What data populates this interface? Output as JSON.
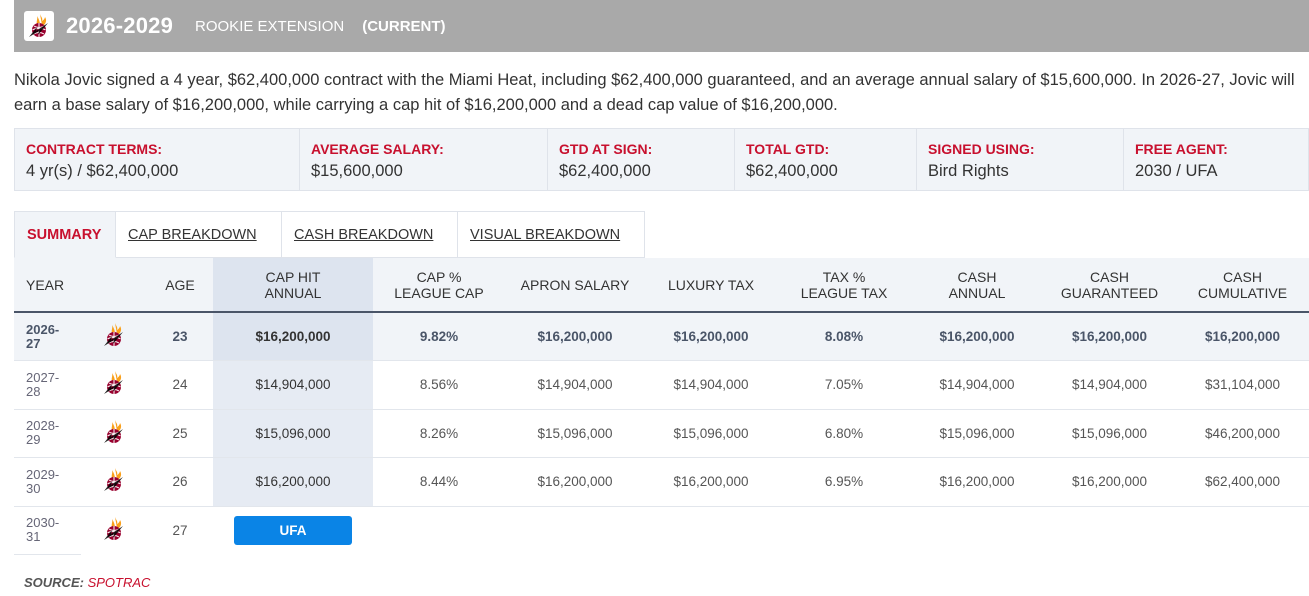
{
  "header": {
    "years": "2026-2029",
    "type": "ROOKIE EXTENSION",
    "status": "(CURRENT)",
    "logo_icon": "miami-heat-logo"
  },
  "summary": "Nikola Jovic signed a 4 year, $62,400,000 contract with the Miami Heat, including $62,400,000 guaranteed, and an average annual salary of $15,600,000. In 2026-27, Jovic will earn a base salary of $16,200,000, while carrying a cap hit of $16,200,000 and a dead cap value of $16,200,000.",
  "terms": [
    {
      "label": "CONTRACT TERMS:",
      "value": "4 yr(s) / $62,400,000"
    },
    {
      "label": "AVERAGE SALARY:",
      "value": "$15,600,000"
    },
    {
      "label": "GTD AT SIGN:",
      "value": "$62,400,000"
    },
    {
      "label": "TOTAL GTD:",
      "value": "$62,400,000"
    },
    {
      "label": "SIGNED USING:",
      "value": "Bird Rights"
    },
    {
      "label": "FREE AGENT:",
      "value": "2030 / UFA"
    }
  ],
  "tabs": [
    {
      "label": "SUMMARY",
      "active": true
    },
    {
      "label": "CAP BREAKDOWN",
      "active": false
    },
    {
      "label": "CASH BREAKDOWN",
      "active": false
    },
    {
      "label": "VISUAL BREAKDOWN",
      "active": false
    }
  ],
  "table": {
    "headers": {
      "year": "YEAR",
      "age": "AGE",
      "cap_hit_1": "CAP HIT",
      "cap_hit_2": "ANNUAL",
      "cap_pct_1": "CAP %",
      "cap_pct_2": "LEAGUE CAP",
      "apron": "APRON SALARY",
      "luxury": "LUXURY TAX",
      "tax_pct_1": "TAX %",
      "tax_pct_2": "LEAGUE TAX",
      "cash_annual_1": "CASH",
      "cash_annual_2": "ANNUAL",
      "cash_gtd_1": "CASH",
      "cash_gtd_2": "GUARANTEED",
      "cash_cum_1": "CASH",
      "cash_cum_2": "CUMULATIVE"
    },
    "rows": [
      {
        "year_1": "2026-",
        "year_2": "27",
        "age": "23",
        "cap_hit": "$16,200,000",
        "cap_pct": "9.82%",
        "apron": "$16,200,000",
        "luxury": "$16,200,000",
        "tax_pct": "8.08%",
        "cash_annual": "$16,200,000",
        "cash_gtd": "$16,200,000",
        "cash_cum": "$16,200,000"
      },
      {
        "year_1": "2027-",
        "year_2": "28",
        "age": "24",
        "cap_hit": "$14,904,000",
        "cap_pct": "8.56%",
        "apron": "$14,904,000",
        "luxury": "$14,904,000",
        "tax_pct": "7.05%",
        "cash_annual": "$14,904,000",
        "cash_gtd": "$14,904,000",
        "cash_cum": "$31,104,000"
      },
      {
        "year_1": "2028-",
        "year_2": "29",
        "age": "25",
        "cap_hit": "$15,096,000",
        "cap_pct": "8.26%",
        "apron": "$15,096,000",
        "luxury": "$15,096,000",
        "tax_pct": "6.80%",
        "cash_annual": "$15,096,000",
        "cash_gtd": "$15,096,000",
        "cash_cum": "$46,200,000"
      },
      {
        "year_1": "2029-",
        "year_2": "30",
        "age": "26",
        "cap_hit": "$16,200,000",
        "cap_pct": "8.44%",
        "apron": "$16,200,000",
        "luxury": "$16,200,000",
        "tax_pct": "6.95%",
        "cash_annual": "$16,200,000",
        "cash_gtd": "$16,200,000",
        "cash_cum": "$62,400,000"
      },
      {
        "year_1": "2030-",
        "year_2": "31",
        "age": "27",
        "ufa": "UFA"
      }
    ]
  },
  "source": {
    "label": "SOURCE:",
    "name": "SPOTRAC"
  },
  "colors": {
    "accent_red": "#c8102e",
    "ufa_blue": "#0a84e6",
    "header_gray": "#a9a9a9"
  }
}
